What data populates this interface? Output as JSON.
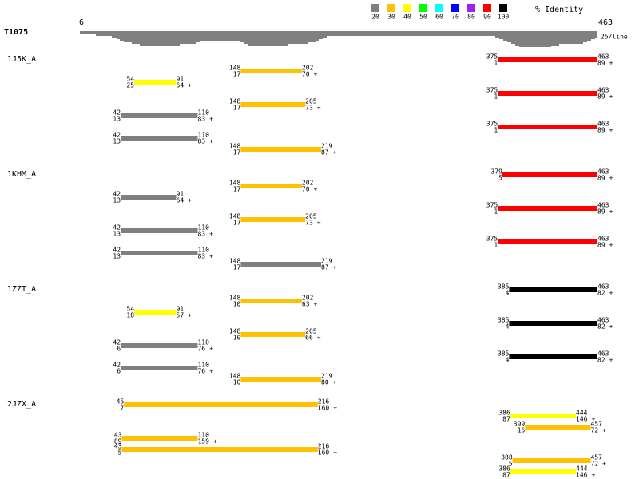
{
  "legend": {
    "items": [
      {
        "label": "20",
        "color": "#808080"
      },
      {
        "label": "30",
        "color": "#ffc000"
      },
      {
        "label": "40",
        "color": "#ffff00"
      },
      {
        "label": "50",
        "color": "#00ff00"
      },
      {
        "label": "60",
        "color": "#00ffff"
      },
      {
        "label": "70",
        "color": "#0000ff"
      },
      {
        "label": "80",
        "color": "#a020f0"
      },
      {
        "label": "90",
        "color": "#ff0000"
      },
      {
        "label": "100",
        "color": "#000000"
      }
    ],
    "title": "% Identity"
  },
  "query": {
    "name": "T1075",
    "start": 6,
    "end": 463,
    "scale_note": "25/line"
  },
  "groups": [
    {
      "name": "1J5K_A",
      "hits": [
        {
          "q_start": 375,
          "q_end": 463,
          "t_start": 1,
          "t_end": 89,
          "strand": "+",
          "color": "#ff0000"
        },
        {
          "q_start": 148,
          "q_end": 202,
          "t_start": 17,
          "t_end": 70,
          "strand": "+",
          "color": "#ffc000"
        },
        {
          "q_start": 54,
          "q_end": 91,
          "t_start": 25,
          "t_end": 64,
          "strand": "+",
          "color": "#ffff00"
        },
        {
          "q_start": 375,
          "q_end": 463,
          "t_start": 1,
          "t_end": 89,
          "strand": "+",
          "color": "#ff0000"
        },
        {
          "q_start": 148,
          "q_end": 205,
          "t_start": 17,
          "t_end": 73,
          "strand": "+",
          "color": "#ffc000"
        },
        {
          "q_start": 42,
          "q_end": 110,
          "t_start": 13,
          "t_end": 83,
          "strand": "+",
          "color": "#808080"
        },
        {
          "q_start": 375,
          "q_end": 463,
          "t_start": 1,
          "t_end": 89,
          "strand": "+",
          "color": "#ff0000"
        },
        {
          "q_start": 42,
          "q_end": 110,
          "t_start": 13,
          "t_end": 83,
          "strand": "+",
          "color": "#808080"
        },
        {
          "q_start": 148,
          "q_end": 219,
          "t_start": 17,
          "t_end": 87,
          "strand": "+",
          "color": "#ffc000"
        }
      ]
    },
    {
      "name": "1KHM_A",
      "hits": [
        {
          "q_start": 379,
          "q_end": 463,
          "t_start": 5,
          "t_end": 89,
          "strand": "+",
          "color": "#ff0000"
        },
        {
          "q_start": 148,
          "q_end": 202,
          "t_start": 17,
          "t_end": 70,
          "strand": "+",
          "color": "#ffc000"
        },
        {
          "q_start": 42,
          "q_end": 91,
          "t_start": 13,
          "t_end": 64,
          "strand": "+",
          "color": "#808080"
        },
        {
          "q_start": 375,
          "q_end": 463,
          "t_start": 1,
          "t_end": 89,
          "strand": "+",
          "color": "#ff0000"
        },
        {
          "q_start": 148,
          "q_end": 205,
          "t_start": 17,
          "t_end": 73,
          "strand": "+",
          "color": "#ffc000"
        },
        {
          "q_start": 42,
          "q_end": 110,
          "t_start": 13,
          "t_end": 83,
          "strand": "+",
          "color": "#808080"
        },
        {
          "q_start": 375,
          "q_end": 463,
          "t_start": 1,
          "t_end": 89,
          "strand": "+",
          "color": "#ff0000"
        },
        {
          "q_start": 42,
          "q_end": 110,
          "t_start": 13,
          "t_end": 83,
          "strand": "+",
          "color": "#808080"
        },
        {
          "q_start": 148,
          "q_end": 219,
          "t_start": 17,
          "t_end": 87,
          "strand": "+",
          "color": "#808080"
        }
      ]
    },
    {
      "name": "1ZZI_A",
      "hits": [
        {
          "q_start": 385,
          "q_end": 463,
          "t_start": 4,
          "t_end": 82,
          "strand": "+",
          "color": "#000000"
        },
        {
          "q_start": 148,
          "q_end": 202,
          "t_start": 10,
          "t_end": 63,
          "strand": "+",
          "color": "#ffc000"
        },
        {
          "q_start": 54,
          "q_end": 91,
          "t_start": 18,
          "t_end": 57,
          "strand": "+",
          "color": "#ffff00"
        },
        {
          "q_start": 385,
          "q_end": 463,
          "t_start": 4,
          "t_end": 82,
          "strand": "+",
          "color": "#000000"
        },
        {
          "q_start": 148,
          "q_end": 205,
          "t_start": 10,
          "t_end": 66,
          "strand": "+",
          "color": "#ffc000"
        },
        {
          "q_start": 42,
          "q_end": 110,
          "t_start": 6,
          "t_end": 76,
          "strand": "+",
          "color": "#808080"
        },
        {
          "q_start": 385,
          "q_end": 463,
          "t_start": 4,
          "t_end": 82,
          "strand": "+",
          "color": "#000000"
        },
        {
          "q_start": 42,
          "q_end": 110,
          "t_start": 6,
          "t_end": 76,
          "strand": "+",
          "color": "#808080"
        },
        {
          "q_start": 148,
          "q_end": 219,
          "t_start": 10,
          "t_end": 80,
          "strand": "+",
          "color": "#ffc000"
        }
      ]
    },
    {
      "name": "2JZX_A",
      "hits": [
        {
          "q_start": 45,
          "q_end": 216,
          "t_start": 7,
          "t_end": 160,
          "strand": "+",
          "color": "#ffc000"
        },
        {
          "q_start": 386,
          "q_end": 444,
          "t_start": 87,
          "t_end": 146,
          "strand": "+",
          "color": "#ffff00"
        },
        {
          "q_start": 399,
          "q_end": 457,
          "t_start": 16,
          "t_end": 72,
          "strand": "+",
          "color": "#ffc000"
        },
        {
          "q_start": 43,
          "q_end": 110,
          "t_start": 89,
          "t_end": 159,
          "strand": "+",
          "color": "#ffc000"
        },
        {
          "q_start": 43,
          "q_end": 216,
          "t_start": 5,
          "t_end": 160,
          "strand": "+",
          "color": "#ffc000"
        },
        {
          "q_start": 388,
          "q_end": 457,
          "t_start": 5,
          "t_end": 72,
          "strand": "+",
          "color": "#ffc000"
        },
        {
          "q_start": 386,
          "q_end": 444,
          "t_start": 87,
          "t_end": 146,
          "strand": "+",
          "color": "#ffff00"
        }
      ]
    }
  ]
}
